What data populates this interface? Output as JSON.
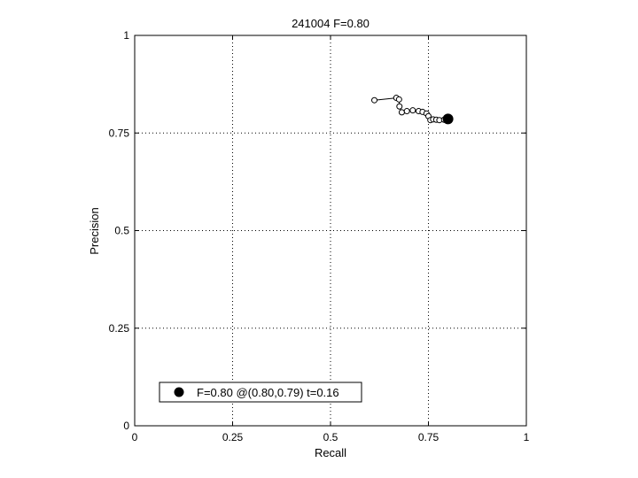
{
  "chart_data": {
    "type": "line",
    "title": "241004 F=0.80",
    "xlabel": "Recall",
    "ylabel": "Precision",
    "xlim": [
      0,
      1
    ],
    "ylim": [
      0,
      1
    ],
    "xticks": [
      0,
      0.25,
      0.5,
      0.75,
      1
    ],
    "yticks": [
      0,
      0.25,
      0.5,
      0.75,
      1
    ],
    "xtick_labels": [
      "0",
      "0.25",
      "0.5",
      "0.75",
      "1"
    ],
    "ytick_labels": [
      "0",
      "0.25",
      "0.5",
      "0.75",
      "1"
    ],
    "grid": true,
    "legend_position": "bottom-left",
    "series": [
      {
        "marker": "open-circle",
        "color": "#000000",
        "x": [
          0.612,
          0.668,
          0.675,
          0.676,
          0.682,
          0.695,
          0.71,
          0.725,
          0.735,
          0.745,
          0.75,
          0.755,
          0.762,
          0.77,
          0.778,
          0.79
        ],
        "y": [
          0.834,
          0.84,
          0.836,
          0.818,
          0.803,
          0.806,
          0.808,
          0.806,
          0.804,
          0.8,
          0.793,
          0.783,
          0.785,
          0.784,
          0.783,
          0.784
        ]
      }
    ],
    "best_point": {
      "x": 0.8,
      "y": 0.786,
      "marker": "filled-circle",
      "legend_label": "F=0.80 @(0.80,0.79) t=0.16"
    }
  }
}
